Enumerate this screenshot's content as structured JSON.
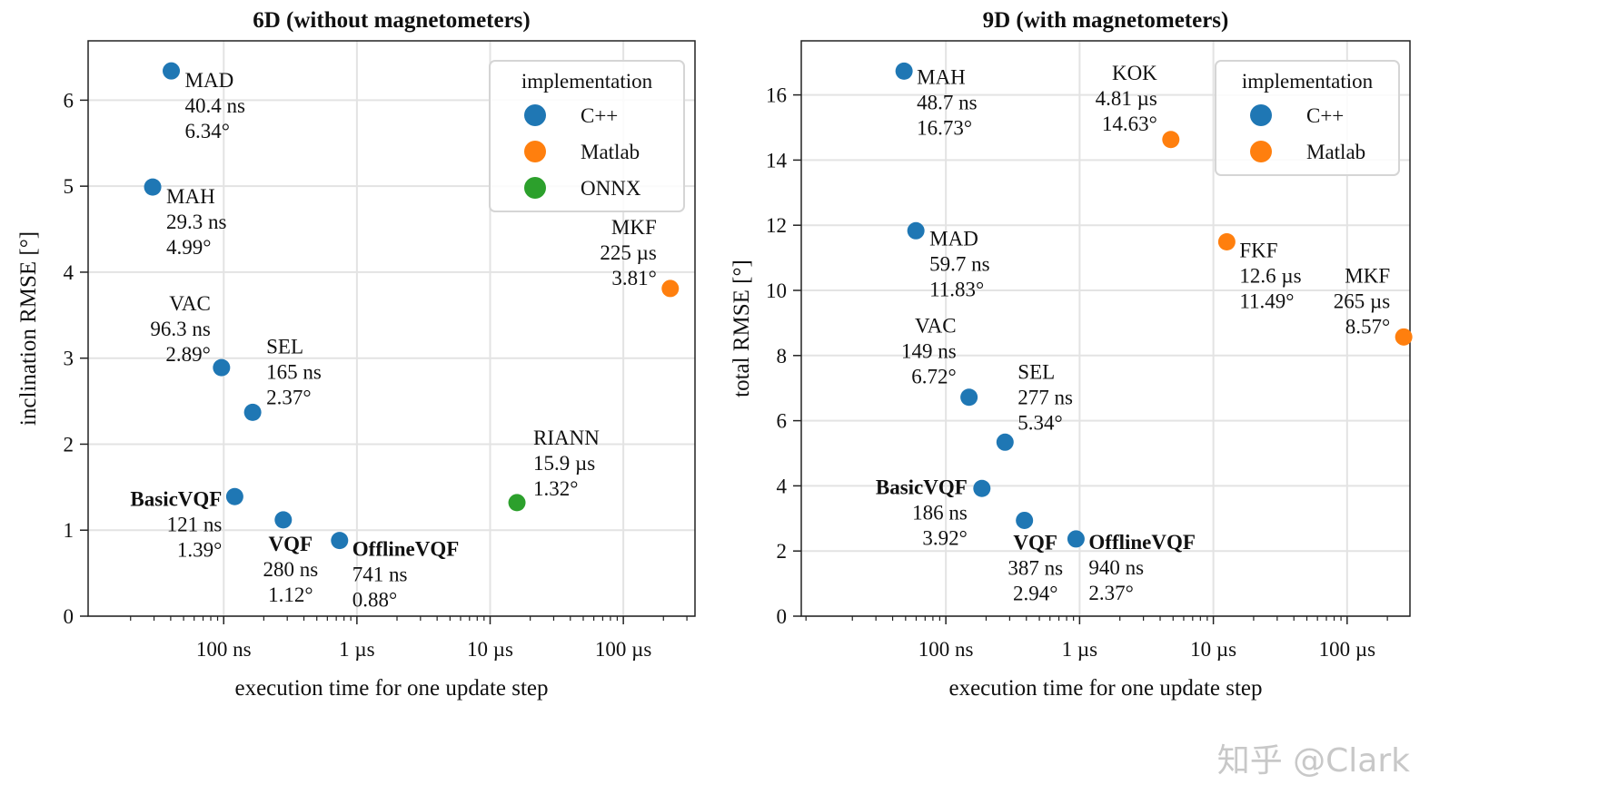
{
  "watermark": "知乎 @Clark",
  "colors": {
    "C++": "#1f77b4",
    "Matlab": "#ff7f0e",
    "ONNX": "#2ca02c"
  },
  "chart_data": [
    {
      "type": "scatter",
      "title": "6D (without magnetometers)",
      "xlabel": "execution time for one update step",
      "ylabel": "inclination RMSE [°]",
      "xscale": "log",
      "x_unit": "ns",
      "xlim": [
        9.6,
        345000
      ],
      "ylim": [
        0,
        6.69
      ],
      "xticks": [
        {
          "value": 100,
          "label": "100 ns"
        },
        {
          "value": 1000,
          "label": "1 µs"
        },
        {
          "value": 10000,
          "label": "10 µs"
        },
        {
          "value": 100000,
          "label": "100 µs"
        }
      ],
      "yticks": [
        0,
        1,
        2,
        3,
        4,
        5,
        6
      ],
      "grid": true,
      "legend": {
        "title": "implementation",
        "placement": "top-right",
        "entries": [
          "C++",
          "Matlab",
          "ONNX"
        ]
      },
      "points": [
        {
          "name": "MAD",
          "x": 40.4,
          "y": 6.34,
          "impl": "C++",
          "time_label": "40.4 ns",
          "err_label": "6.34°",
          "bold": false
        },
        {
          "name": "MAH",
          "x": 29.3,
          "y": 4.99,
          "impl": "C++",
          "time_label": "29.3 ns",
          "err_label": "4.99°",
          "bold": false
        },
        {
          "name": "VAC",
          "x": 96.3,
          "y": 2.89,
          "impl": "C++",
          "time_label": "96.3 ns",
          "err_label": "2.89°",
          "bold": false
        },
        {
          "name": "SEL",
          "x": 165,
          "y": 2.37,
          "impl": "C++",
          "time_label": "165 ns",
          "err_label": "2.37°",
          "bold": false
        },
        {
          "name": "BasicVQF",
          "x": 121,
          "y": 1.39,
          "impl": "C++",
          "time_label": "121 ns",
          "err_label": "1.39°",
          "bold": true
        },
        {
          "name": "VQF",
          "x": 280,
          "y": 1.12,
          "impl": "C++",
          "time_label": "280 ns",
          "err_label": "1.12°",
          "bold": true
        },
        {
          "name": "OfflineVQF",
          "x": 741,
          "y": 0.88,
          "impl": "C++",
          "time_label": "741 ns",
          "err_label": "0.88°",
          "bold": true
        },
        {
          "name": "MKF",
          "x": 225000,
          "y": 3.81,
          "impl": "Matlab",
          "time_label": "225 µs",
          "err_label": "3.81°",
          "bold": false
        },
        {
          "name": "RIANN",
          "x": 15900,
          "y": 1.32,
          "impl": "ONNX",
          "time_label": "15.9 µs",
          "err_label": "1.32°",
          "bold": false
        }
      ]
    },
    {
      "type": "scatter",
      "title": "9D (with magnetometers)",
      "xlabel": "execution time for one update step",
      "ylabel": "total RMSE [°]",
      "xscale": "log",
      "x_unit": "ns",
      "xlim": [
        8.3,
        295000
      ],
      "ylim": [
        0,
        17.66
      ],
      "xticks": [
        {
          "value": 100,
          "label": "100 ns"
        },
        {
          "value": 1000,
          "label": "1 µs"
        },
        {
          "value": 10000,
          "label": "10 µs"
        },
        {
          "value": 100000,
          "label": "100 µs"
        }
      ],
      "yticks": [
        0,
        2,
        4,
        6,
        8,
        10,
        12,
        14,
        16
      ],
      "grid": true,
      "legend": {
        "title": "implementation",
        "placement": "top-right",
        "entries": [
          "C++",
          "Matlab"
        ]
      },
      "points": [
        {
          "name": "MAH",
          "x": 48.7,
          "y": 16.73,
          "impl": "C++",
          "time_label": "48.7 ns",
          "err_label": "16.73°",
          "bold": false
        },
        {
          "name": "KOK",
          "x": 4810,
          "y": 14.63,
          "impl": "Matlab",
          "time_label": "4.81 µs",
          "err_label": "14.63°",
          "bold": false
        },
        {
          "name": "MAD",
          "x": 59.7,
          "y": 11.83,
          "impl": "C++",
          "time_label": "59.7 ns",
          "err_label": "11.83°",
          "bold": false
        },
        {
          "name": "FKF",
          "x": 12600,
          "y": 11.49,
          "impl": "Matlab",
          "time_label": "12.6 µs",
          "err_label": "11.49°",
          "bold": false
        },
        {
          "name": "MKF",
          "x": 265000,
          "y": 8.57,
          "impl": "Matlab",
          "time_label": "265 µs",
          "err_label": "8.57°",
          "bold": false
        },
        {
          "name": "VAC",
          "x": 149,
          "y": 6.72,
          "impl": "C++",
          "time_label": "149 ns",
          "err_label": "6.72°",
          "bold": false
        },
        {
          "name": "SEL",
          "x": 277,
          "y": 5.34,
          "impl": "C++",
          "time_label": "277 ns",
          "err_label": "5.34°",
          "bold": false
        },
        {
          "name": "BasicVQF",
          "x": 186,
          "y": 3.92,
          "impl": "C++",
          "time_label": "186 ns",
          "err_label": "3.92°",
          "bold": true
        },
        {
          "name": "VQF",
          "x": 387,
          "y": 2.94,
          "impl": "C++",
          "time_label": "387 ns",
          "err_label": "2.94°",
          "bold": true
        },
        {
          "name": "OfflineVQF",
          "x": 940,
          "y": 2.37,
          "impl": "C++",
          "time_label": "940 ns",
          "err_label": "2.37°",
          "bold": true
        }
      ]
    }
  ]
}
